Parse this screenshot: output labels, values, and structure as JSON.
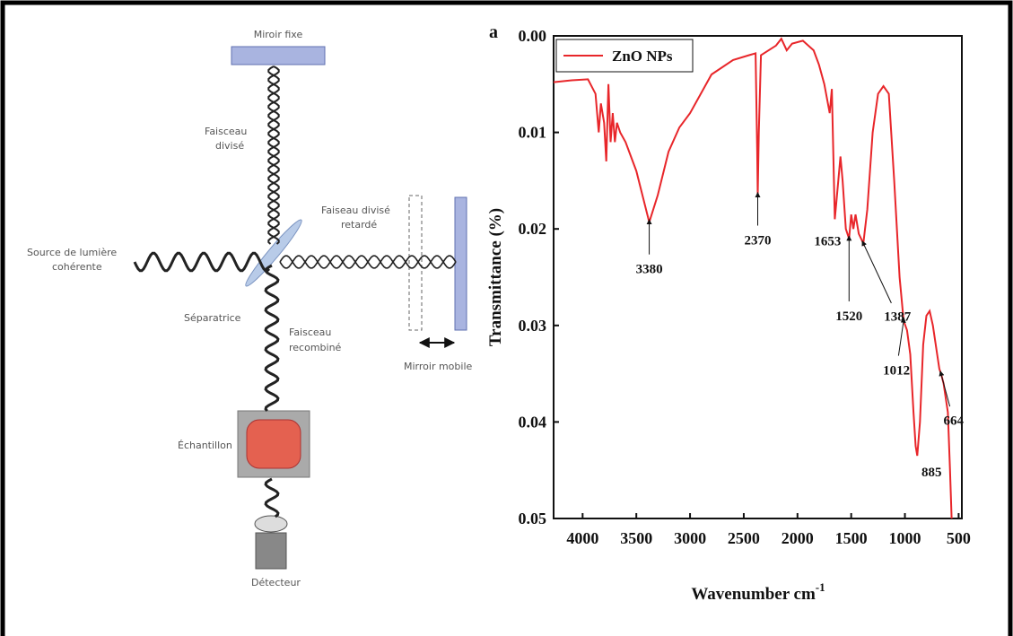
{
  "diagram": {
    "fixed_mirror": "Miroir fixe",
    "split_beam": [
      "Faisceau",
      "divisé"
    ],
    "delayed_beam": [
      "Faiseau divisé",
      "retardé"
    ],
    "source": [
      "Source de lumière",
      "cohérente"
    ],
    "splitter": "Séparatrice",
    "recombined_beam": [
      "Faisceau",
      "recombiné"
    ],
    "mobile_mirror": "Mirroir mobile",
    "sample": "Échantillon",
    "detector": "Détecteur"
  },
  "chart_data": {
    "type": "line",
    "panel_label": "a",
    "x_label": "Wavenumber cm",
    "x_label_sup": "-1",
    "y_label": "Transmittance (%)",
    "xlim": [
      4270,
      470
    ],
    "xticks": [
      4000,
      3500,
      3000,
      2500,
      2000,
      1500,
      1000,
      500
    ],
    "ylim": [
      0,
      0.05
    ],
    "yticks": [
      {
        "value": 0,
        "label": "0.00"
      },
      {
        "value": 0.01,
        "label": "0.01"
      },
      {
        "value": 0.02,
        "label": "0.02"
      },
      {
        "value": 0.03,
        "label": "0.03"
      },
      {
        "value": 0.04,
        "label": "0.04"
      },
      {
        "value": 0.05,
        "label": "0.05"
      }
    ],
    "series": [
      {
        "name": "ZnO NPs",
        "color": "#e8262a",
        "x": [
          4270,
          4100,
          3950,
          3880,
          3850,
          3830,
          3800,
          3780,
          3760,
          3740,
          3720,
          3700,
          3680,
          3650,
          3600,
          3500,
          3380,
          3300,
          3200,
          3100,
          3000,
          2900,
          2800,
          2600,
          2450,
          2390,
          2375,
          2370,
          2360,
          2340,
          2200,
          2150,
          2100,
          2050,
          1950,
          1900,
          1850,
          1800,
          1750,
          1700,
          1680,
          1653,
          1620,
          1600,
          1580,
          1550,
          1520,
          1500,
          1480,
          1460,
          1430,
          1387,
          1350,
          1300,
          1250,
          1200,
          1150,
          1100,
          1050,
          1012,
          980,
          950,
          920,
          900,
          885,
          860,
          830,
          800,
          770,
          740,
          700,
          680,
          664,
          640,
          600,
          580,
          565
        ],
        "values": [
          0.0048,
          0.0046,
          0.0045,
          0.006,
          0.01,
          0.007,
          0.009,
          0.013,
          0.005,
          0.011,
          0.008,
          0.011,
          0.009,
          0.01,
          0.011,
          0.014,
          0.0193,
          0.0165,
          0.012,
          0.0095,
          0.008,
          0.006,
          0.004,
          0.0025,
          0.002,
          0.0018,
          0.012,
          0.0165,
          0.01,
          0.002,
          0.001,
          0.0003,
          0.0015,
          0.0008,
          0.0005,
          0.001,
          0.0015,
          0.003,
          0.005,
          0.008,
          0.0055,
          0.019,
          0.015,
          0.0125,
          0.015,
          0.02,
          0.021,
          0.0185,
          0.02,
          0.0185,
          0.0205,
          0.0215,
          0.018,
          0.01,
          0.006,
          0.0052,
          0.006,
          0.015,
          0.025,
          0.0295,
          0.0305,
          0.033,
          0.039,
          0.0425,
          0.0435,
          0.04,
          0.032,
          0.029,
          0.0285,
          0.03,
          0.033,
          0.0345,
          0.035,
          0.036,
          0.039,
          0.045,
          0.05
        ]
      }
    ],
    "annotations": [
      {
        "x": 3380,
        "y": 0.0193
      },
      {
        "x": 2370,
        "y": 0.0165
      },
      {
        "x": 1653,
        "y": 0.019
      },
      {
        "x": 1520,
        "y": 0.021
      },
      {
        "x": 1387,
        "y": 0.0215
      },
      {
        "x": 1012,
        "y": 0.0295
      },
      {
        "x": 885,
        "y": 0.0435
      },
      {
        "x": 664,
        "y": 0.035
      }
    ]
  }
}
